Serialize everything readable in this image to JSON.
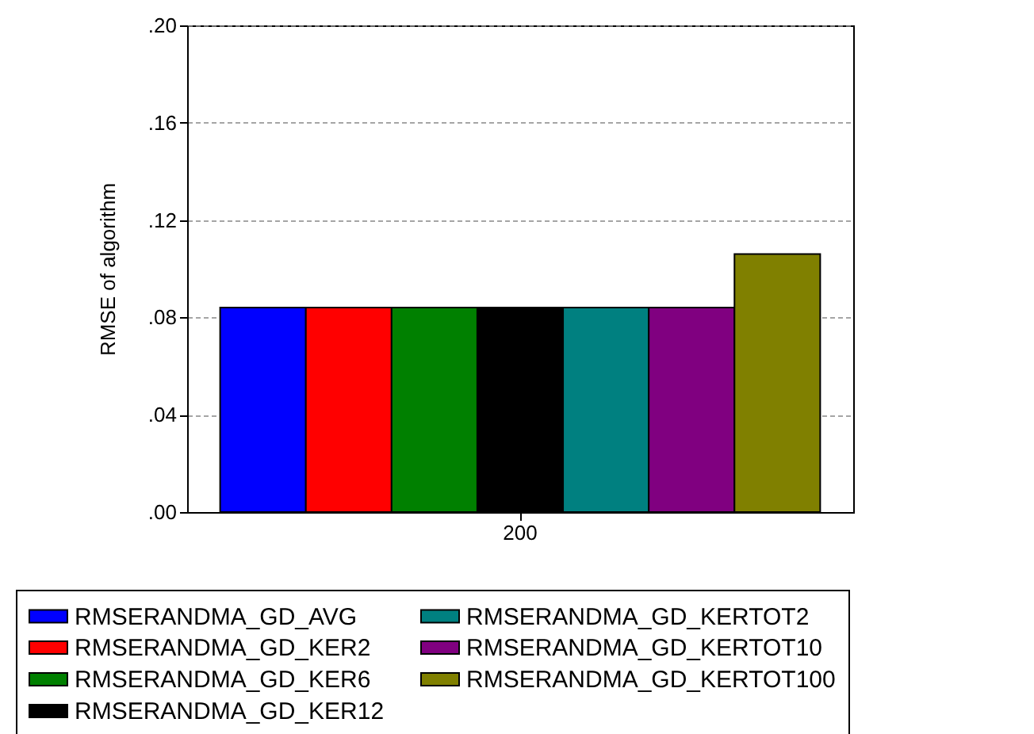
{
  "chart_data": {
    "type": "bar",
    "ylabel": "RMSE of algorithm",
    "categories": [
      "200"
    ],
    "series": [
      {
        "name": "RMSERANDMA_GD_AVG",
        "color": "#0000ff",
        "values": [
          0.084
        ]
      },
      {
        "name": "RMSERANDMA_GD_KER2",
        "color": "#ff0000",
        "values": [
          0.084
        ]
      },
      {
        "name": "RMSERANDMA_GD_KER6",
        "color": "#008000",
        "values": [
          0.084
        ]
      },
      {
        "name": "RMSERANDMA_GD_KER12",
        "color": "#000000",
        "values": [
          0.084
        ]
      },
      {
        "name": "RMSERANDMA_GD_KERTOT2",
        "color": "#008080",
        "values": [
          0.084
        ]
      },
      {
        "name": "RMSERANDMA_GD_KERTOT10",
        "color": "#800080",
        "values": [
          0.084
        ]
      },
      {
        "name": "RMSERANDMA_GD_KERTOT100",
        "color": "#808000",
        "values": [
          0.106
        ]
      }
    ],
    "ylim": [
      0,
      0.2
    ],
    "yticks": [
      {
        "value": 0,
        "label": ".00"
      },
      {
        "value": 0.04,
        "label": ".04"
      },
      {
        "value": 0.08,
        "label": ".08"
      },
      {
        "value": 0.12,
        "label": ".12"
      },
      {
        "value": 0.16,
        "label": ".16"
      },
      {
        "value": 0.2,
        "label": ".20"
      }
    ],
    "grid": "y",
    "legend": "bottom"
  }
}
